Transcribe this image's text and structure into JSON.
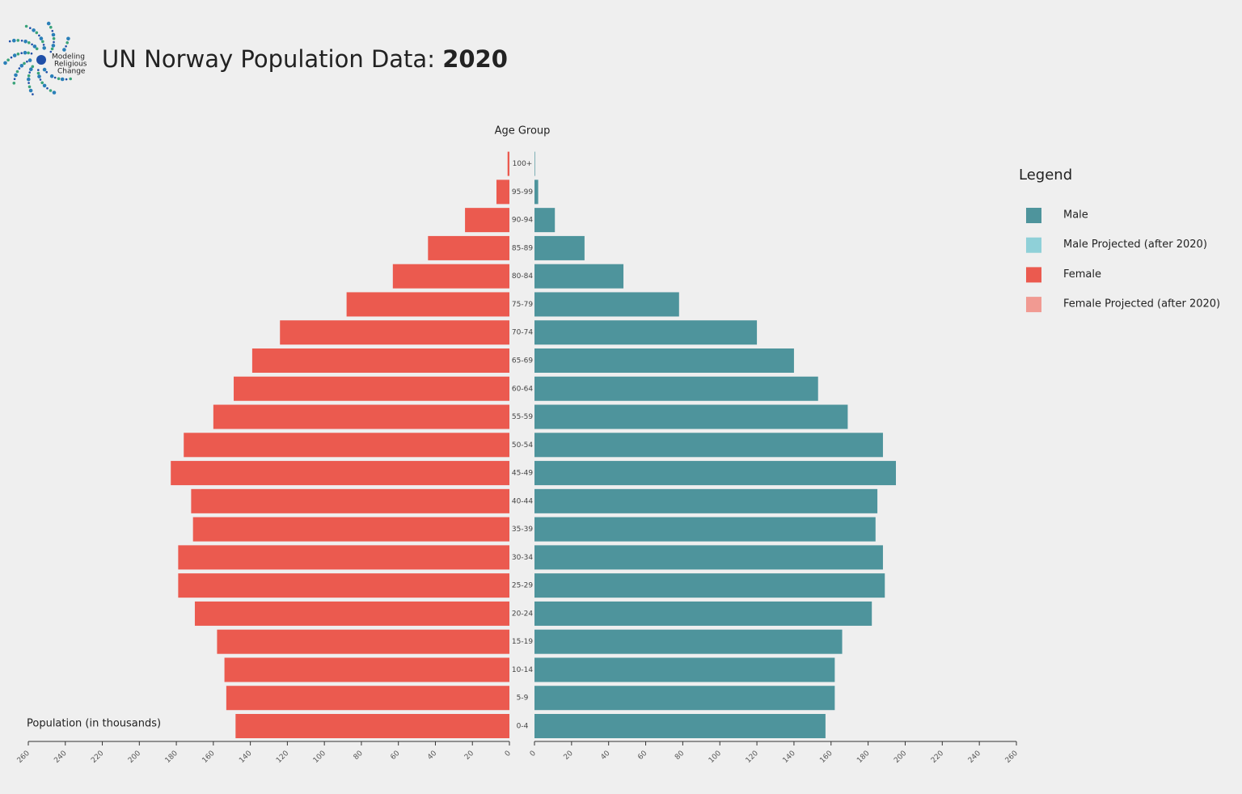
{
  "logo": [
    "Modeling",
    "Religious",
    "Change"
  ],
  "chart_data": {
    "type": "pyramid",
    "title": "UN Norway Population Data:",
    "year": "2020",
    "y_axis_label": "Age Group",
    "x_axis_label": "Population (in thousands)",
    "legend_title": "Legend",
    "categories": [
      "0-4",
      "5-9",
      "10-14",
      "15-19",
      "20-24",
      "25-29",
      "30-34",
      "35-39",
      "40-44",
      "45-49",
      "50-54",
      "55-59",
      "60-64",
      "65-69",
      "70-74",
      "75-79",
      "80-84",
      "85-89",
      "90-94",
      "95-99",
      "100+"
    ],
    "series": [
      {
        "name": "Male",
        "color": "#4e949c",
        "side": "right",
        "values": [
          157,
          162,
          162,
          166,
          182,
          189,
          188,
          184,
          185,
          195,
          188,
          169,
          153,
          140,
          120,
          78,
          48,
          27,
          11,
          2,
          0.3
        ]
      },
      {
        "name": "Female",
        "color": "#eb5a4f",
        "side": "left",
        "values": [
          148,
          153,
          154,
          158,
          170,
          179,
          179,
          171,
          172,
          183,
          176,
          160,
          149,
          139,
          124,
          88,
          63,
          44,
          24,
          7,
          1
        ]
      }
    ],
    "projected_series": [
      {
        "name": "Male Projected (after 2020)",
        "color": "#8fd0d8"
      },
      {
        "name": "Female Projected (after 2020)",
        "color": "#f19a92"
      }
    ],
    "xlim": [
      0,
      260
    ],
    "xticks": [
      0,
      20,
      40,
      60,
      80,
      100,
      120,
      140,
      160,
      180,
      200,
      220,
      240,
      260
    ]
  }
}
